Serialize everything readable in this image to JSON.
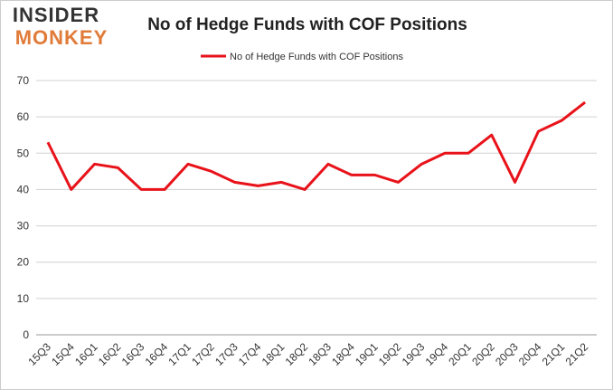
{
  "logo": {
    "line1": "INSIDER",
    "line2": "MONKEY"
  },
  "chart_data": {
    "type": "line",
    "title": "No of Hedge Funds with COF Positions",
    "categories": [
      "15Q3",
      "15Q4",
      "16Q1",
      "16Q2",
      "16Q3",
      "16Q4",
      "17Q1",
      "17Q2",
      "17Q3",
      "17Q4",
      "18Q1",
      "18Q2",
      "18Q3",
      "18Q4",
      "19Q1",
      "19Q2",
      "19Q3",
      "19Q4",
      "20Q1",
      "20Q2",
      "20Q3",
      "20Q4",
      "21Q1",
      "21Q2"
    ],
    "series": [
      {
        "name": "No of Hedge Funds with COF Positions",
        "color": "#e8121a",
        "values": [
          53,
          40,
          47,
          46,
          40,
          40,
          47,
          45,
          42,
          41,
          42,
          40,
          47,
          44,
          44,
          42,
          47,
          50,
          50,
          55,
          42,
          56,
          59,
          64
        ]
      }
    ],
    "ylim": [
      0,
      70
    ],
    "yticks": [
      0,
      10,
      20,
      30,
      40,
      50,
      60,
      70
    ],
    "grid": true,
    "legend": "top"
  }
}
